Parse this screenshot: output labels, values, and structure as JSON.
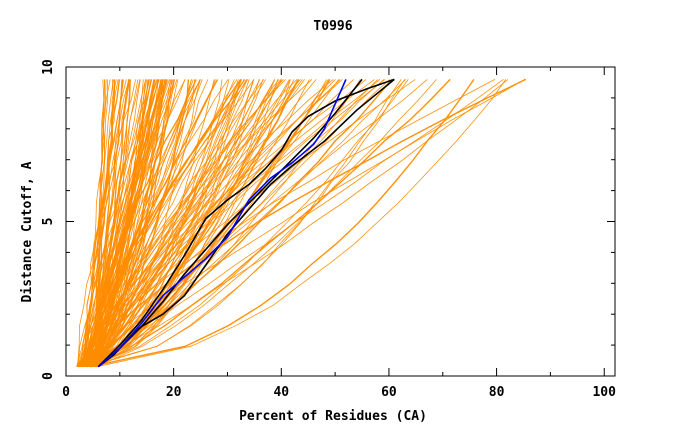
{
  "chart_data": {
    "type": "line",
    "title": "T0996",
    "xlabel": "Percent of Residues (CA)",
    "ylabel": "Distance Cutoff, A",
    "xlim": [
      0,
      102
    ],
    "ylim": [
      0,
      10
    ],
    "xticks": [
      0,
      20,
      40,
      60,
      80,
      100
    ],
    "yticks": [
      0,
      5,
      10
    ],
    "grid": false,
    "legend": "none",
    "colors": {
      "models": "#ff8c00",
      "highlight_black": "#000000",
      "highlight_blue": "#0000ff",
      "axes": "#000000"
    },
    "series": [
      {
        "color": "#000000",
        "x": [
          6,
          10,
          14,
          18,
          22,
          26,
          30,
          34,
          38,
          42,
          46,
          50,
          55
        ],
        "y": [
          0.3,
          0.9,
          1.6,
          2.4,
          3.3,
          4.1,
          4.9,
          5.6,
          6.3,
          7.0,
          7.7,
          8.5,
          9.6
        ]
      },
      {
        "color": "#000000",
        "x": [
          6,
          9,
          12,
          14,
          18,
          22,
          26,
          30,
          34,
          38,
          42,
          48,
          54,
          61
        ],
        "y": [
          0.3,
          0.7,
          1.3,
          1.6,
          2.0,
          2.6,
          3.6,
          4.6,
          5.4,
          6.2,
          6.8,
          7.6,
          8.6,
          9.6
        ]
      },
      {
        "color": "#000000",
        "x": [
          6,
          10,
          14,
          18,
          22,
          26,
          30,
          34,
          37,
          40,
          42,
          45,
          50,
          56,
          61
        ],
        "y": [
          0.3,
          1.0,
          1.8,
          2.8,
          3.9,
          5.1,
          5.7,
          6.2,
          6.7,
          7.3,
          7.9,
          8.4,
          8.9,
          9.3,
          9.6
        ]
      },
      {
        "color": "#0000ff",
        "x": [
          6,
          10,
          14,
          18,
          22,
          26,
          30,
          34,
          38,
          42,
          46,
          48,
          50,
          52
        ],
        "y": [
          0.3,
          0.9,
          1.7,
          2.6,
          3.2,
          3.8,
          4.5,
          5.7,
          6.4,
          6.9,
          7.5,
          8.0,
          8.8,
          9.6
        ]
      }
    ]
  }
}
